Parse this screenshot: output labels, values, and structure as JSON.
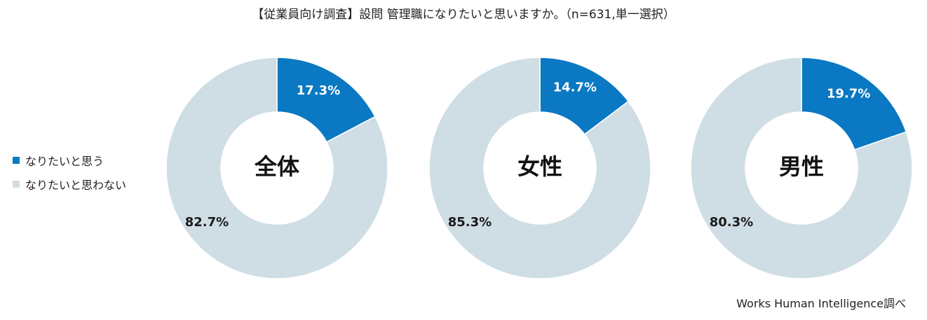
{
  "title": "【従業員向け調査】設問 管理職になりたいと思いますか。（n=631,単一選択）",
  "source": "Works Human Intelligence調べ",
  "colors": {
    "want": "#0a78c2",
    "not_want": "#cfdde5",
    "label_on_want": "#ffffff",
    "label_on_not_want": "#1a1a1a"
  },
  "legend": [
    {
      "label": "なりたいと思う",
      "color": "#0a78c2"
    },
    {
      "label": "なりたいと思わない",
      "color": "#cfdde5"
    }
  ],
  "chart_data": [
    {
      "type": "pie",
      "center_label": "全体",
      "slices": [
        {
          "name": "なりたいと思う",
          "value": 17.3,
          "label": "17.3%"
        },
        {
          "name": "なりたいと思わない",
          "value": 82.7,
          "label": "82.7%"
        }
      ]
    },
    {
      "type": "pie",
      "center_label": "女性",
      "slices": [
        {
          "name": "なりたいと思う",
          "value": 14.7,
          "label": "14.7%"
        },
        {
          "name": "なりたいと思わない",
          "value": 85.3,
          "label": "85.3%"
        }
      ]
    },
    {
      "type": "pie",
      "center_label": "男性",
      "slices": [
        {
          "name": "なりたいと思う",
          "value": 19.7,
          "label": "19.7%"
        },
        {
          "name": "なりたいと思わない",
          "value": 80.3,
          "label": "80.3%"
        }
      ]
    }
  ]
}
